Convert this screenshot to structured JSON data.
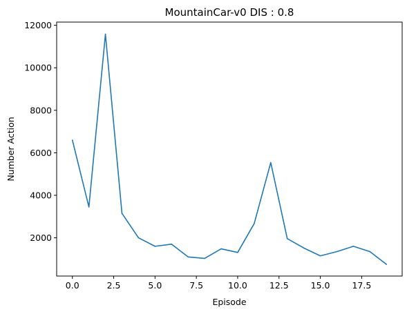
{
  "chart_data": {
    "type": "line",
    "title": "MountainCar-v0 DIS : 0.8",
    "xlabel": "Episode",
    "ylabel": "Number Action",
    "xlim": [
      -0.95,
      19.95
    ],
    "ylim": [
      200,
      12150
    ],
    "xticks": [
      0,
      2.5,
      5,
      7.5,
      10,
      12.5,
      15,
      17.5
    ],
    "xtick_labels": [
      "0.0",
      "2.5",
      "5.0",
      "7.5",
      "10.0",
      "12.5",
      "15.0",
      "17.5"
    ],
    "yticks": [
      2000,
      4000,
      6000,
      8000,
      10000,
      12000
    ],
    "ytick_labels": [
      "2000",
      "4000",
      "6000",
      "8000",
      "10000",
      "12000"
    ],
    "grid": false,
    "series": [
      {
        "color": "#1f77b4",
        "x": [
          0,
          1,
          2,
          3,
          4,
          5,
          6,
          7,
          8,
          9,
          10,
          11,
          12,
          13,
          14,
          15,
          16,
          17,
          18,
          19
        ],
        "y": [
          6600,
          3450,
          11580,
          3150,
          2000,
          1600,
          1700,
          1100,
          1030,
          1480,
          1310,
          2670,
          5540,
          1960,
          1520,
          1150,
          1350,
          1600,
          1350,
          750
        ]
      }
    ]
  }
}
